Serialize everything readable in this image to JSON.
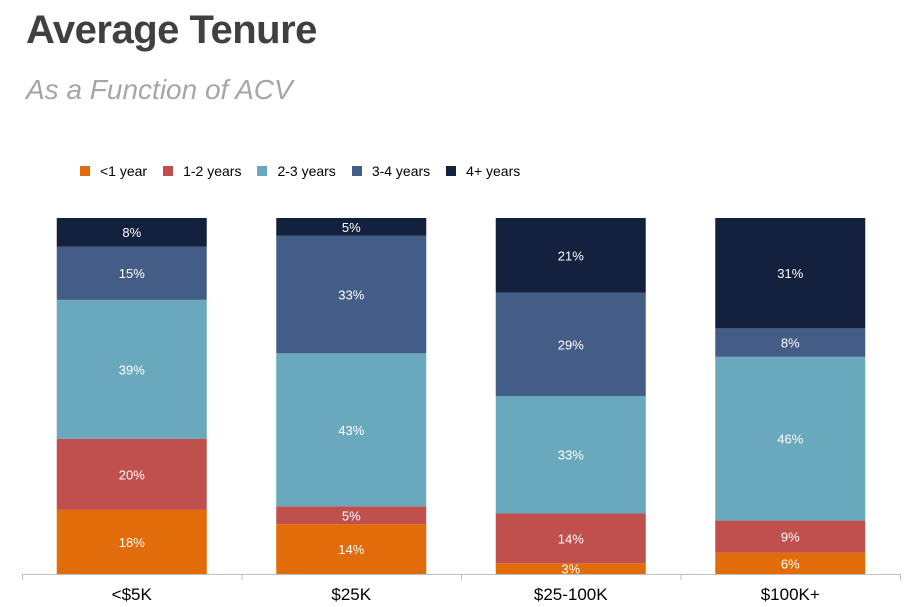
{
  "title": "Average Tenure",
  "subtitle": "As a Function of ACV",
  "colors": {
    "lt1": "#e36c0a",
    "y12": "#c0504d",
    "y23": "#69a8bd",
    "y34": "#445d87",
    "y4p": "#13213e",
    "axis": "#bfbfbf",
    "label": "#ffffff"
  },
  "legend": [
    {
      "label": "<1 year",
      "color": "#e36c0a"
    },
    {
      "label": "1-2 years",
      "color": "#c0504d"
    },
    {
      "label": "2-3 years",
      "color": "#69a8bd"
    },
    {
      "label": "3-4 years",
      "color": "#445d87"
    },
    {
      "label": "4+ years",
      "color": "#13213e"
    }
  ],
  "chart_data": {
    "type": "bar",
    "stacked": true,
    "percent": true,
    "legend_position": "top",
    "grid": false,
    "ylim": [
      0,
      100
    ],
    "categories": [
      "<$5K",
      "$25K",
      "$25-100K",
      "$100K+"
    ],
    "series": [
      {
        "name": "<1 year",
        "color": "#e36c0a",
        "values": [
          18,
          14,
          3,
          6
        ]
      },
      {
        "name": "1-2 years",
        "color": "#c0504d",
        "values": [
          20,
          5,
          14,
          9
        ]
      },
      {
        "name": "2-3 years",
        "color": "#69a8bd",
        "values": [
          39,
          43,
          33,
          46
        ]
      },
      {
        "name": "3-4 years",
        "color": "#445d87",
        "values": [
          15,
          33,
          29,
          8
        ]
      },
      {
        "name": "4+ years",
        "color": "#13213e",
        "values": [
          8,
          5,
          21,
          31
        ]
      }
    ]
  }
}
